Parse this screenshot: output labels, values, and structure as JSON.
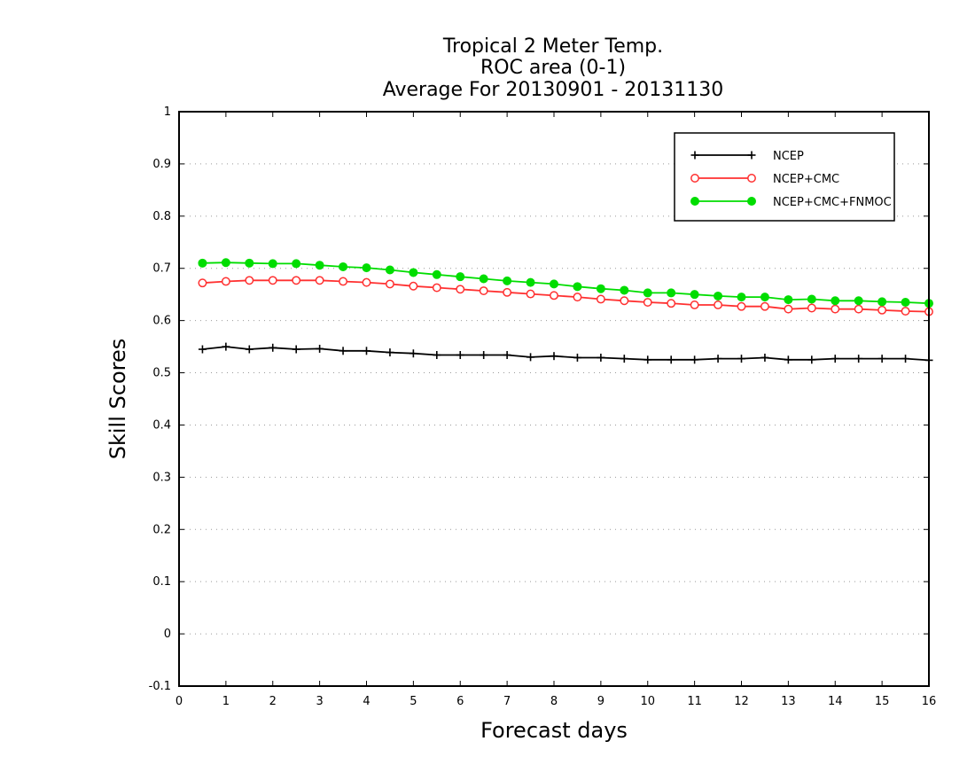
{
  "chart_data": {
    "type": "line",
    "title_lines": [
      "Tropical 2 Meter Temp.",
      "ROC area (0-1)",
      "Average For 20130901 - 20131130"
    ],
    "xlabel": "Forecast days",
    "ylabel": "Skill Scores",
    "xlim": [
      0,
      16
    ],
    "ylim": [
      -0.1,
      1
    ],
    "x_ticks": [
      0,
      1,
      2,
      3,
      4,
      5,
      6,
      7,
      8,
      9,
      10,
      11,
      12,
      13,
      14,
      15,
      16
    ],
    "x_tick_labels": [
      "0",
      "1",
      "2",
      "3",
      "4",
      "5",
      "6",
      "7",
      "8",
      "9",
      "10",
      "11",
      "12",
      "13",
      "14",
      "15",
      "16"
    ],
    "y_ticks": [
      -0.1,
      0,
      0.1,
      0.2,
      0.3,
      0.4,
      0.5,
      0.6,
      0.7,
      0.8,
      0.9,
      1
    ],
    "y_tick_labels": [
      "-0.1",
      "0",
      "0.1",
      "0.2",
      "0.3",
      "0.4",
      "0.5",
      "0.6",
      "0.7",
      "0.8",
      "0.9",
      "1"
    ],
    "grid": true,
    "legend_position": "top-right",
    "x": [
      0.5,
      1,
      1.5,
      2,
      2.5,
      3,
      3.5,
      4,
      4.5,
      5,
      5.5,
      6,
      6.5,
      7,
      7.5,
      8,
      8.5,
      9,
      9.5,
      10,
      10.5,
      11,
      11.5,
      12,
      12.5,
      13,
      13.5,
      14,
      14.5,
      15,
      15.5,
      16
    ],
    "series": [
      {
        "name": "NCEP",
        "color": "#000000",
        "marker": "plus",
        "values": [
          0.545,
          0.55,
          0.545,
          0.548,
          0.545,
          0.546,
          0.542,
          0.542,
          0.539,
          0.537,
          0.534,
          0.534,
          0.534,
          0.534,
          0.53,
          0.532,
          0.529,
          0.529,
          0.527,
          0.525,
          0.525,
          0.525,
          0.527,
          0.527,
          0.529,
          0.525,
          0.525,
          0.527,
          0.527,
          0.527,
          0.527,
          0.524
        ]
      },
      {
        "name": "NCEP+CMC",
        "color": "#ff3030",
        "marker": "open-circle",
        "values": [
          0.672,
          0.675,
          0.677,
          0.677,
          0.677,
          0.677,
          0.675,
          0.673,
          0.67,
          0.666,
          0.663,
          0.66,
          0.657,
          0.654,
          0.651,
          0.648,
          0.645,
          0.641,
          0.638,
          0.635,
          0.633,
          0.63,
          0.63,
          0.627,
          0.627,
          0.622,
          0.624,
          0.622,
          0.622,
          0.62,
          0.618,
          0.617
        ]
      },
      {
        "name": "NCEP+CMC+FNMOC",
        "color": "#00dd00",
        "marker": "filled-circle",
        "values": [
          0.71,
          0.711,
          0.71,
          0.709,
          0.709,
          0.706,
          0.703,
          0.701,
          0.697,
          0.692,
          0.688,
          0.684,
          0.68,
          0.676,
          0.673,
          0.67,
          0.665,
          0.661,
          0.658,
          0.653,
          0.653,
          0.65,
          0.647,
          0.645,
          0.645,
          0.64,
          0.641,
          0.638,
          0.638,
          0.636,
          0.635,
          0.633
        ]
      }
    ]
  }
}
